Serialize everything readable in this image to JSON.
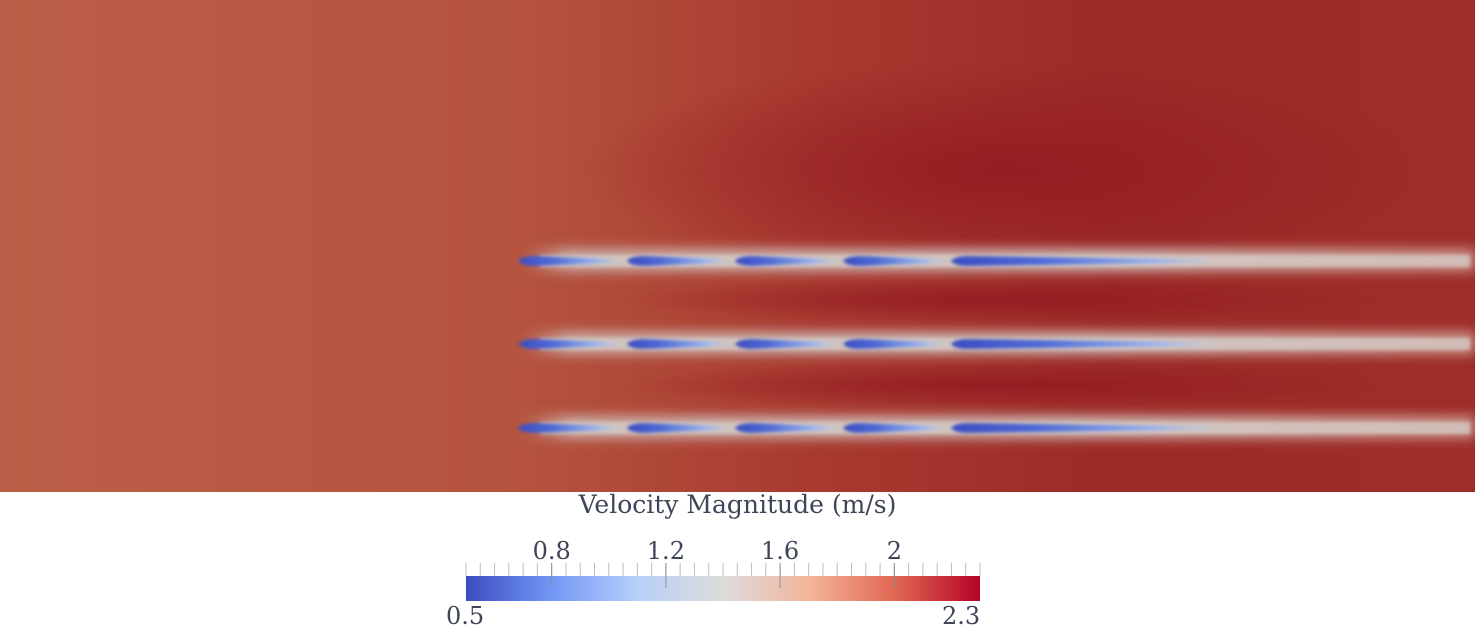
{
  "legend": {
    "title": "Velocity Magnitude (m/s)",
    "min_label": "0.5",
    "max_label": "2.3",
    "range": [
      0.5,
      2.3
    ],
    "ticks": [
      {
        "value": 0.8,
        "label": "0.8"
      },
      {
        "value": 1.2,
        "label": "1.2"
      },
      {
        "value": 1.6,
        "label": "1.6"
      },
      {
        "value": 2.0,
        "label": "2"
      }
    ],
    "colormap": [
      "#3b4cc0",
      "#7397f5",
      "#b7cff9",
      "#dddcdc",
      "#f4b59b",
      "#e16852",
      "#b40426"
    ]
  },
  "field": {
    "background_colors": [
      "#b85c45",
      "#9b2a26"
    ],
    "blade_rows": 3,
    "blades_per_row": 5
  }
}
